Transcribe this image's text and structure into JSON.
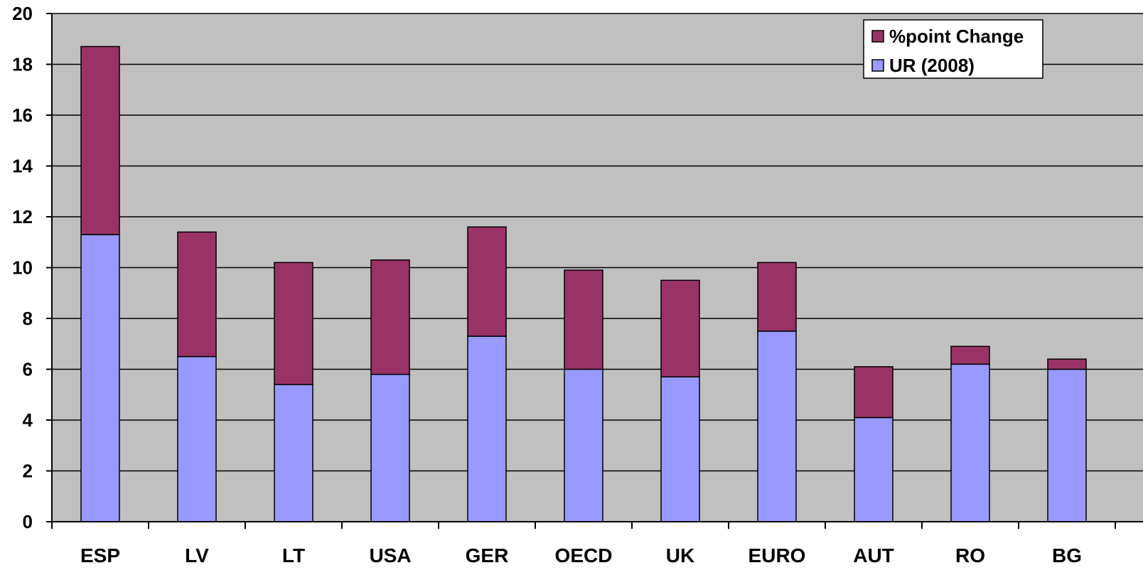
{
  "chart_data": {
    "type": "bar",
    "stacked": true,
    "categories": [
      "ESP",
      "LV",
      "LT",
      "USA",
      "GER",
      "OECD",
      "UK",
      "EURO",
      "AUT",
      "RO",
      "BG"
    ],
    "series": [
      {
        "name": "UR (2008)",
        "color": "#9999FF",
        "values": [
          11.3,
          6.5,
          5.4,
          5.8,
          7.3,
          6.0,
          5.7,
          7.5,
          4.1,
          6.2,
          6.0
        ]
      },
      {
        "name": "%point Change",
        "color": "#993366",
        "values": [
          7.4,
          4.9,
          4.8,
          4.5,
          4.3,
          3.9,
          3.8,
          2.7,
          2.0,
          0.7,
          0.4
        ]
      }
    ],
    "legend_order": [
      "%point Change",
      "UR (2008)"
    ],
    "title": "",
    "xlabel": "",
    "ylabel": "",
    "ylim": [
      0,
      20
    ],
    "yticks": [
      0,
      2,
      4,
      6,
      8,
      10,
      12,
      14,
      16,
      18,
      20
    ],
    "grid": true,
    "legend_position": "top-right",
    "plot_background": "#C0C0C0"
  }
}
